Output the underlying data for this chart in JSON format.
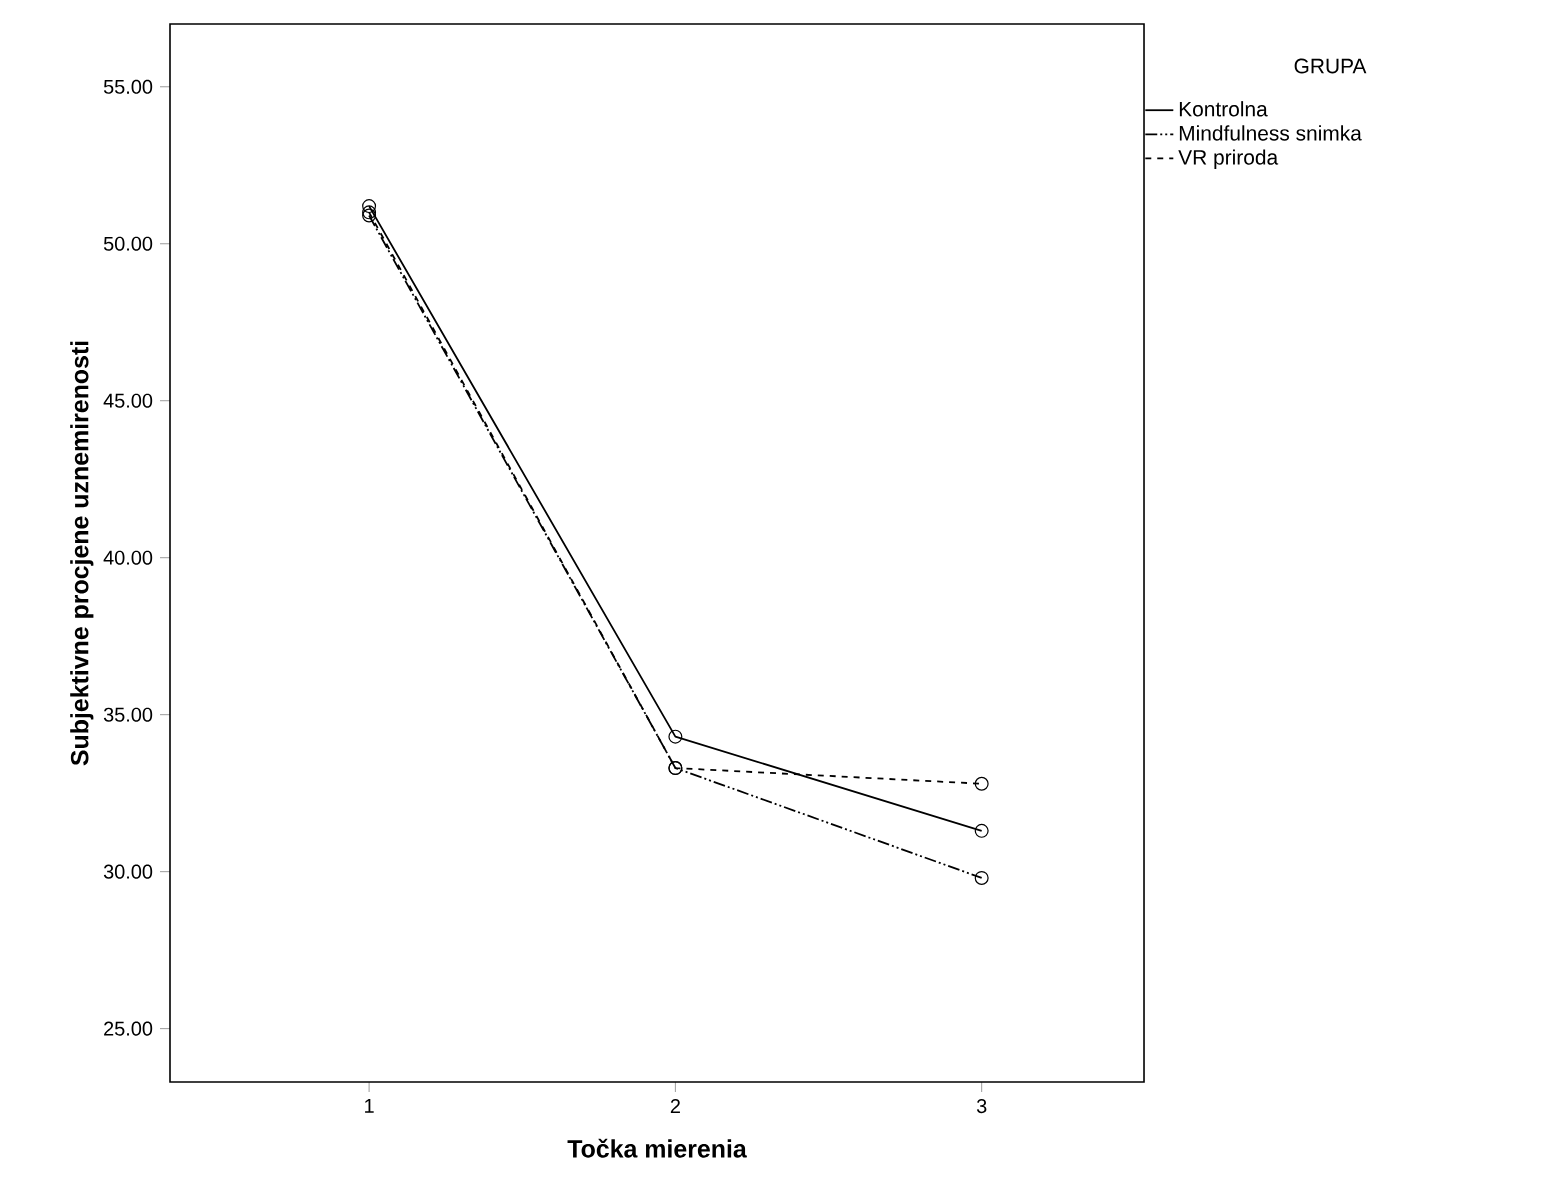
{
  "chart_data": {
    "type": "line",
    "xlabel": "Točka mierenia",
    "ylabel": "Subjektivne procjene uznemirenosti",
    "legend_title": "GRUPA",
    "x": [
      1,
      2,
      3
    ],
    "xlim": [
      0.35,
      3.53
    ],
    "xticks": [
      1,
      2,
      3
    ],
    "ylim": [
      23.3,
      57.0
    ],
    "yticks": [
      {
        "value": 25,
        "label": "25.00"
      },
      {
        "value": 30,
        "label": "30.00"
      },
      {
        "value": 35,
        "label": "35.00"
      },
      {
        "value": 40,
        "label": "40.00"
      },
      {
        "value": 45,
        "label": "45.00"
      },
      {
        "value": 50,
        "label": "50.00"
      },
      {
        "value": 55,
        "label": "55.00"
      }
    ],
    "marker": "circle",
    "legend": "right",
    "grid": false,
    "series": [
      {
        "name": "Kontrolna",
        "color": "#000000",
        "line_style": "solid",
        "values": [
          51.2,
          34.3,
          31.3
        ]
      },
      {
        "name": "Mindfulness snimka",
        "color": "#000000",
        "line_style": "dashdotdotted",
        "values": [
          50.9,
          33.3,
          29.8
        ]
      },
      {
        "name": "VR priroda",
        "color": "#000000",
        "line_style": "dashed",
        "values": [
          51.0,
          33.3,
          32.8
        ]
      }
    ]
  }
}
